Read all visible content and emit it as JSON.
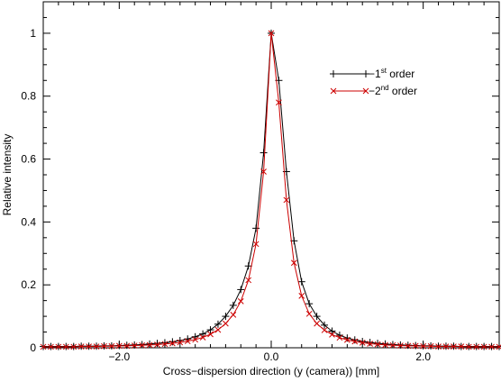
{
  "chart_data": {
    "type": "line",
    "title": "",
    "xlabel": "Cross−dispersion direction (y (camera)) [mm]",
    "ylabel": "Relative intensity",
    "xlim": [
      -3.0,
      3.0
    ],
    "ylim": [
      0,
      1.1
    ],
    "x_ticks": [
      -2.0,
      0.0,
      2.0
    ],
    "x_tick_labels": [
      "−2.0",
      "0.0",
      "2.0"
    ],
    "y_ticks": [
      0,
      0.2,
      0.4,
      0.6,
      0.8,
      1.0
    ],
    "y_tick_labels": [
      "0",
      "0.2",
      "0.4",
      "0.6",
      "0.8",
      "1"
    ],
    "grid": false,
    "legend_position": "top-right",
    "series": [
      {
        "name_prefix": "−1",
        "name_sup": "st",
        "name_suffix": " order",
        "color": "#000000",
        "marker": "plus",
        "points": [
          [
            -3.0,
            0.004
          ],
          [
            -2.9,
            0.004
          ],
          [
            -2.8,
            0.004
          ],
          [
            -2.7,
            0.004
          ],
          [
            -2.6,
            0.004
          ],
          [
            -2.5,
            0.005
          ],
          [
            -2.4,
            0.005
          ],
          [
            -2.3,
            0.005
          ],
          [
            -2.2,
            0.006
          ],
          [
            -2.1,
            0.006
          ],
          [
            -2.0,
            0.007
          ],
          [
            -1.9,
            0.008
          ],
          [
            -1.8,
            0.009
          ],
          [
            -1.7,
            0.01
          ],
          [
            -1.6,
            0.012
          ],
          [
            -1.5,
            0.014
          ],
          [
            -1.4,
            0.016
          ],
          [
            -1.3,
            0.019
          ],
          [
            -1.2,
            0.023
          ],
          [
            -1.1,
            0.028
          ],
          [
            -1.0,
            0.035
          ],
          [
            -0.9,
            0.044
          ],
          [
            -0.8,
            0.057
          ],
          [
            -0.7,
            0.075
          ],
          [
            -0.6,
            0.1
          ],
          [
            -0.5,
            0.135
          ],
          [
            -0.4,
            0.185
          ],
          [
            -0.3,
            0.26
          ],
          [
            -0.2,
            0.38
          ],
          [
            -0.1,
            0.62
          ],
          [
            0.0,
            1.0
          ],
          [
            0.1,
            0.85
          ],
          [
            0.2,
            0.56
          ],
          [
            0.3,
            0.34
          ],
          [
            0.4,
            0.21
          ],
          [
            0.5,
            0.14
          ],
          [
            0.6,
            0.1
          ],
          [
            0.7,
            0.072
          ],
          [
            0.8,
            0.053
          ],
          [
            0.9,
            0.04
          ],
          [
            1.0,
            0.031
          ],
          [
            1.1,
            0.025
          ],
          [
            1.2,
            0.02
          ],
          [
            1.3,
            0.017
          ],
          [
            1.4,
            0.014
          ],
          [
            1.5,
            0.012
          ],
          [
            1.6,
            0.01
          ],
          [
            1.7,
            0.009
          ],
          [
            1.8,
            0.008
          ],
          [
            1.9,
            0.007
          ],
          [
            2.0,
            0.006
          ],
          [
            2.1,
            0.006
          ],
          [
            2.2,
            0.005
          ],
          [
            2.3,
            0.005
          ],
          [
            2.4,
            0.005
          ],
          [
            2.5,
            0.004
          ],
          [
            2.6,
            0.004
          ],
          [
            2.7,
            0.004
          ],
          [
            2.8,
            0.004
          ],
          [
            2.9,
            0.004
          ],
          [
            3.0,
            0.004
          ]
        ]
      },
      {
        "name_prefix": "−2",
        "name_sup": "nd",
        "name_suffix": " order",
        "color": "#cc0000",
        "marker": "cross",
        "points": [
          [
            -3.0,
            0.003
          ],
          [
            -2.9,
            0.003
          ],
          [
            -2.8,
            0.003
          ],
          [
            -2.7,
            0.003
          ],
          [
            -2.6,
            0.003
          ],
          [
            -2.5,
            0.004
          ],
          [
            -2.4,
            0.004
          ],
          [
            -2.3,
            0.004
          ],
          [
            -2.2,
            0.005
          ],
          [
            -2.1,
            0.005
          ],
          [
            -2.0,
            0.006
          ],
          [
            -1.9,
            0.006
          ],
          [
            -1.8,
            0.007
          ],
          [
            -1.7,
            0.008
          ],
          [
            -1.6,
            0.009
          ],
          [
            -1.5,
            0.01
          ],
          [
            -1.4,
            0.012
          ],
          [
            -1.3,
            0.014
          ],
          [
            -1.2,
            0.017
          ],
          [
            -1.1,
            0.021
          ],
          [
            -1.0,
            0.026
          ],
          [
            -0.9,
            0.033
          ],
          [
            -0.8,
            0.043
          ],
          [
            -0.7,
            0.057
          ],
          [
            -0.6,
            0.077
          ],
          [
            -0.5,
            0.105
          ],
          [
            -0.4,
            0.148
          ],
          [
            -0.3,
            0.215
          ],
          [
            -0.2,
            0.33
          ],
          [
            -0.1,
            0.56
          ],
          [
            0.0,
            1.0
          ],
          [
            0.1,
            0.78
          ],
          [
            0.2,
            0.47
          ],
          [
            0.3,
            0.27
          ],
          [
            0.4,
            0.165
          ],
          [
            0.5,
            0.108
          ],
          [
            0.6,
            0.077
          ],
          [
            0.7,
            0.056
          ],
          [
            0.8,
            0.042
          ],
          [
            0.9,
            0.032
          ],
          [
            1.0,
            0.025
          ],
          [
            1.1,
            0.02
          ],
          [
            1.2,
            0.016
          ],
          [
            1.3,
            0.013
          ],
          [
            1.4,
            0.011
          ],
          [
            1.5,
            0.009
          ],
          [
            1.6,
            0.008
          ],
          [
            1.7,
            0.007
          ],
          [
            1.8,
            0.006
          ],
          [
            1.9,
            0.006
          ],
          [
            2.0,
            0.005
          ],
          [
            2.1,
            0.005
          ],
          [
            2.2,
            0.004
          ],
          [
            2.3,
            0.004
          ],
          [
            2.4,
            0.004
          ],
          [
            2.5,
            0.004
          ],
          [
            2.6,
            0.003
          ],
          [
            2.7,
            0.003
          ],
          [
            2.8,
            0.003
          ],
          [
            2.9,
            0.003
          ],
          [
            3.0,
            0.003
          ]
        ]
      }
    ]
  }
}
